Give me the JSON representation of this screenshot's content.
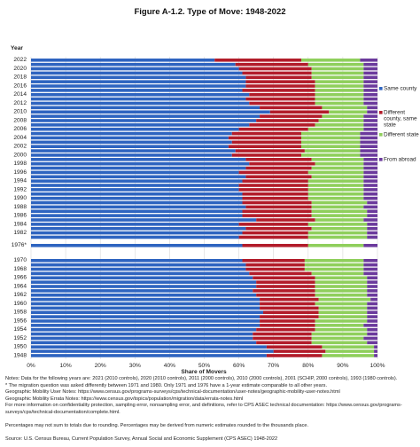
{
  "chart_data": {
    "type": "bar",
    "orientation": "horizontal",
    "stacked": true,
    "title": "Figure A-1.2. Type of Move: 1948-2022",
    "ylabel": "Year",
    "xlabel": "Share of Movers",
    "xlim": [
      0,
      100
    ],
    "xticks": [
      "0%",
      "10%",
      "20%",
      "30%",
      "40%",
      "50%",
      "60%",
      "70%",
      "80%",
      "90%",
      "100%"
    ],
    "legend_position": "right",
    "colors": {
      "same_county": "#2e64c0",
      "different_county": "#b21c2a",
      "different_state": "#8fcf5c",
      "abroad": "#6b3a9c"
    },
    "series": [
      {
        "name": "Same county"
      },
      {
        "name": "Different county, same state"
      },
      {
        "name": "Different state"
      },
      {
        "name": "From abroad"
      }
    ],
    "groups": [
      {
        "years": [
          2022,
          2021,
          2020,
          2019,
          2018,
          2017,
          2016,
          2015,
          2014,
          2013,
          2012,
          2011,
          2010,
          2009,
          2008,
          2007,
          2006,
          2005,
          2004,
          2003,
          2002,
          2001,
          2000,
          1999,
          1998,
          1997,
          1996,
          1995,
          1994,
          1993,
          1992,
          1991,
          1990,
          1989,
          1988,
          1987,
          1986,
          1985,
          1984,
          1983,
          1982,
          1981
        ],
        "year_labels": [
          "2022",
          "",
          "2020",
          "",
          "2018",
          "",
          "2016",
          "",
          "2014",
          "",
          "2012",
          "",
          "2010",
          "",
          "2008",
          "",
          "2006",
          "",
          "2004",
          "",
          "2002",
          "",
          "2000",
          "",
          "1998",
          "",
          "1996",
          "",
          "1994",
          "",
          "1992",
          "",
          "1990",
          "",
          "1988",
          "",
          "1986",
          "",
          "1984",
          "",
          "1982",
          ""
        ],
        "same_county": [
          53,
          59,
          60,
          61,
          62,
          62,
          62,
          61,
          63,
          62,
          63,
          66,
          69,
          66,
          65,
          63,
          60,
          58,
          57,
          58,
          57,
          59,
          58,
          62,
          63,
          62,
          60,
          62,
          61,
          60,
          60,
          61,
          61,
          61,
          62,
          61,
          61,
          65,
          60,
          62,
          61,
          60
        ],
        "different_county": [
          25,
          21,
          21,
          20,
          19,
          20,
          20,
          21,
          19,
          20,
          19,
          18,
          17,
          18,
          18,
          19,
          20,
          20,
          21,
          20,
          21,
          20,
          20,
          19,
          19,
          19,
          20,
          19,
          19,
          20,
          20,
          19,
          19,
          20,
          19,
          20,
          20,
          17,
          20,
          19,
          19,
          20
        ],
        "different_state": [
          17,
          16,
          15,
          15,
          15,
          14,
          14,
          14,
          14,
          14,
          14,
          13,
          11,
          12,
          13,
          14,
          16,
          17,
          17,
          17,
          17,
          16,
          17,
          15,
          14,
          15,
          16,
          15,
          16,
          16,
          16,
          16,
          16,
          16,
          15,
          16,
          16,
          14,
          17,
          16,
          17,
          17
        ],
        "abroad": [
          5,
          4,
          4,
          4,
          4,
          4,
          4,
          4,
          4,
          4,
          4,
          3,
          3,
          4,
          4,
          4,
          4,
          5,
          5,
          5,
          5,
          5,
          5,
          4,
          4,
          4,
          4,
          4,
          4,
          4,
          4,
          4,
          4,
          3,
          4,
          3,
          3,
          4,
          3,
          3,
          3,
          3
        ]
      },
      {
        "years": [
          1976
        ],
        "year_labels": [
          "1976*"
        ],
        "same_county": [
          61
        ],
        "different_county": [
          19
        ],
        "different_state": [
          16
        ],
        "abroad": [
          4
        ]
      },
      {
        "years": [
          1970,
          1969,
          1968,
          1967,
          1966,
          1965,
          1964,
          1963,
          1962,
          1961,
          1960,
          1959,
          1958,
          1957,
          1956,
          1955,
          1954,
          1953,
          1952,
          1951,
          1950,
          1949,
          1948
        ],
        "year_labels": [
          "1970",
          "",
          "1968",
          "",
          "1966",
          "",
          "1964",
          "",
          "1962",
          "",
          "1960",
          "",
          "1958",
          "",
          "1956",
          "",
          "1954",
          "",
          "1952",
          "",
          "1950",
          "",
          "1948"
        ],
        "same_county": [
          61,
          62,
          62,
          63,
          64,
          65,
          65,
          64,
          65,
          66,
          66,
          66,
          67,
          66,
          66,
          66,
          65,
          64,
          64,
          65,
          68,
          70,
          68
        ],
        "different_county": [
          18,
          17,
          17,
          18,
          18,
          17,
          17,
          18,
          17,
          17,
          16,
          17,
          16,
          17,
          16,
          16,
          17,
          17,
          17,
          16,
          16,
          15,
          16
        ],
        "different_state": [
          17,
          17,
          17,
          15,
          15,
          15,
          15,
          15,
          15,
          15,
          15,
          14,
          14,
          14,
          15,
          14,
          15,
          16,
          15,
          16,
          15,
          14,
          15
        ],
        "abroad": [
          4,
          4,
          4,
          4,
          3,
          3,
          3,
          3,
          3,
          2,
          3,
          3,
          3,
          3,
          3,
          4,
          3,
          3,
          4,
          3,
          1,
          1,
          1
        ]
      }
    ]
  },
  "notes": [
    "Notes: Data for the following years are: 2021 (2010 controls), 2020 (2010 controls), 2011 (2000 controls), 2010 (2000 controls), 2001 (SCHIP, 2000 controls), 1993 (1980 controls).",
    "* The migration question was asked differently between 1971 and 1980. Only 1971 and 1976 have a 1-year estimate comparable to all other years.",
    "Geographic Mobility User Notes: https://www.census.gov/programs-surveys/cps/technical-documentation/user-notes/geographic-mobility-user-notes.html",
    "Geographic Mobility Errata Notes: https://www.census.gov/topics/population/migration/data/errata-notes.html",
    "For more information on confidentiality protection, sampling error, nonsampling error, and definitions, refer to CPS ASEC technical documentation: https://www.census.gov/programs-",
    "surveys/cps/technical-documentation/complete.html.",
    "",
    "Percentages may not sum to totals due to rounding. Percentages may be derived from numeric estimates rounded to the thousands place.",
    "",
    "Source: U.S. Census Bureau, Current Population Survey, Annual Social and Economic Supplement (CPS ASEC) 1948-2022"
  ]
}
